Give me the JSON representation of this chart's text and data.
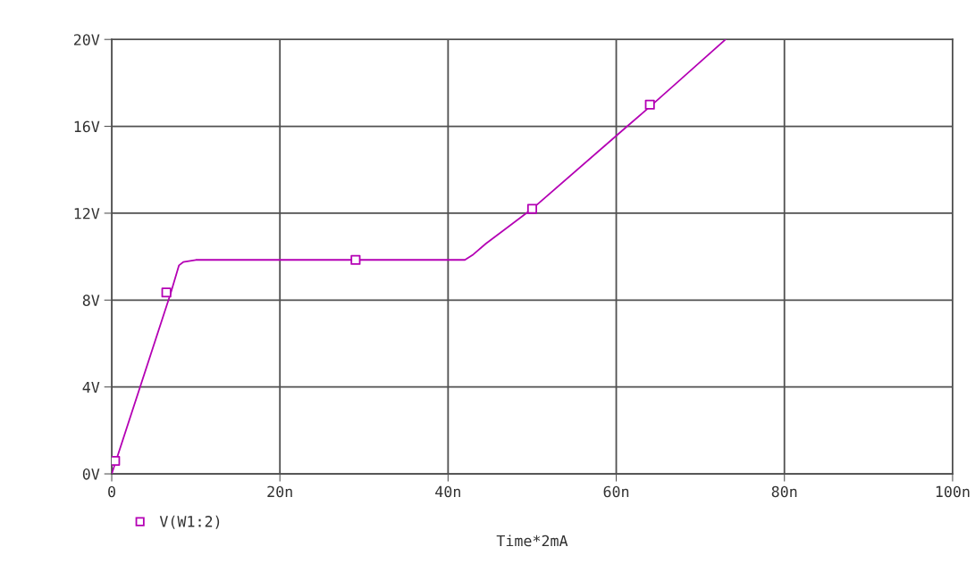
{
  "chart_data": {
    "type": "line",
    "xlabel": "Time*2mA",
    "x": [
      0,
      7,
      8,
      8.5,
      10,
      42,
      43,
      44.5,
      50,
      61,
      64,
      73
    ],
    "series": [
      {
        "name": "V(W1:2)",
        "color": "#b400b4",
        "values": [
          0,
          8.3,
          9.6,
          9.75,
          9.85,
          9.85,
          10.1,
          10.6,
          12.2,
          15.9,
          16.9,
          20
        ],
        "marker": "none"
      },
      {
        "type": "scatter",
        "color": "#b400b4",
        "x": [
          0.4,
          6.5,
          29,
          50,
          64
        ],
        "values": [
          0.6,
          8.35,
          9.85,
          12.2,
          17.0
        ],
        "marker": "square"
      }
    ],
    "xlim": [
      0,
      100
    ],
    "xticks": [
      {
        "value": 0,
        "label": "0"
      },
      {
        "value": 20,
        "label": "20n"
      },
      {
        "value": 40,
        "label": "40n"
      },
      {
        "value": 60,
        "label": "60n"
      },
      {
        "value": 80,
        "label": "80n"
      },
      {
        "value": 100,
        "label": "100n"
      }
    ],
    "ylim": [
      0,
      20
    ],
    "yticks": [
      {
        "value": 0,
        "label": "0V"
      },
      {
        "value": 4,
        "label": "4V"
      },
      {
        "value": 8,
        "label": "8V"
      },
      {
        "value": 12,
        "label": "12V"
      },
      {
        "value": 16,
        "label": "16V"
      },
      {
        "value": 20,
        "label": "20V"
      }
    ],
    "grid": true,
    "legend": "bottom left"
  }
}
